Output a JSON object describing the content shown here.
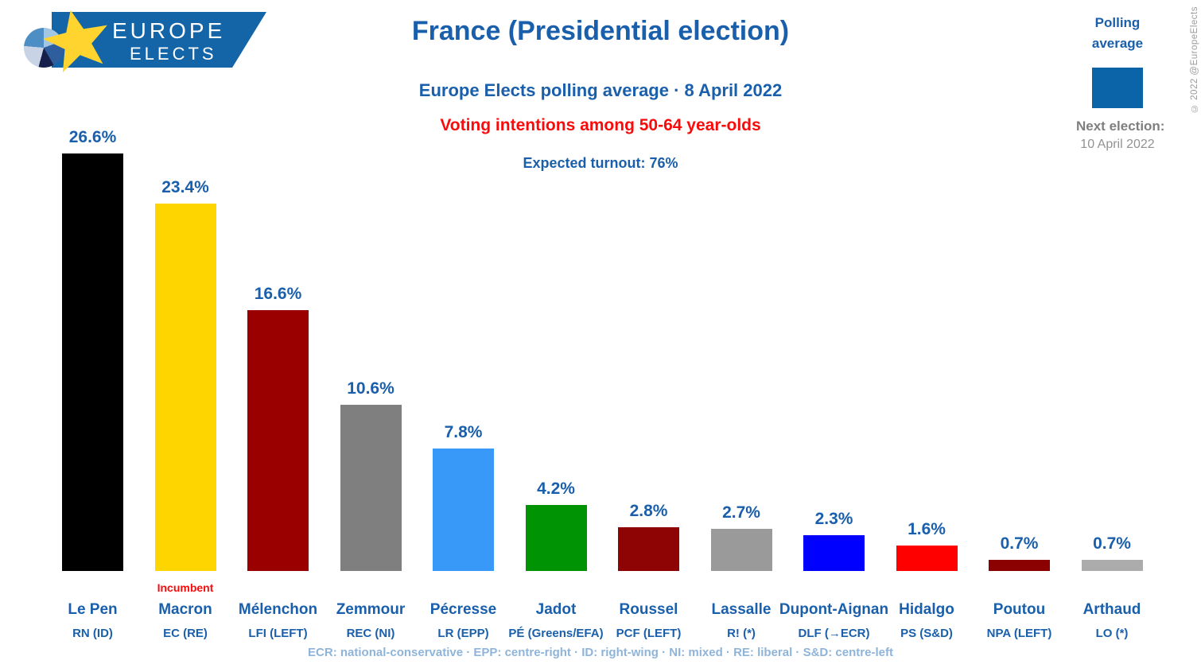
{
  "logo": {
    "line1": "EUROPE",
    "line2": "ELECTS"
  },
  "header": {
    "title": "France (Presidential election)",
    "subtitle": "Europe Elects polling average · 8 April 2022",
    "audience_note": "Voting intentions among 50-64 year-olds",
    "turnout_note": "Expected turnout: 76%"
  },
  "legend": {
    "title_line1": "Polling",
    "title_line2": "average",
    "swatch_color": "#0B63A8",
    "next_election_label": "Next election:",
    "next_election_date": "10 April 2022"
  },
  "watermark": "© 2022 @EuropeElects",
  "footer_note": "ECR: national-conservative · EPP: centre-right · ID: right-wing · NI: mixed · RE: liberal · S&D: centre-left",
  "chart_data": {
    "type": "bar",
    "title": "France (Presidential election)",
    "subtitle": "Europe Elects polling average · 8 April 2022",
    "population": "Voting intentions among 50-64 year-olds",
    "expected_turnout": "76%",
    "value_unit": "%",
    "ylim": [
      0,
      27
    ],
    "grid": false,
    "legend_position": "top-right",
    "categories": [
      "Le Pen",
      "Macron",
      "Mélenchon",
      "Zemmour",
      "Pécresse",
      "Jadot",
      "Roussel",
      "Lassalle",
      "Dupont-Aignan",
      "Hidalgo",
      "Poutou",
      "Arthaud"
    ],
    "series": [
      {
        "name": "Polling average",
        "values": [
          26.6,
          23.4,
          16.6,
          10.6,
          7.8,
          4.2,
          2.8,
          2.7,
          2.3,
          1.6,
          0.7,
          0.7
        ]
      }
    ],
    "bars": [
      {
        "candidate": "Le Pen",
        "party": "RN (ID)",
        "value": 26.6,
        "color": "#000000"
      },
      {
        "candidate": "Macron",
        "party": "EC (RE)",
        "value": 23.4,
        "color": "#FFD500",
        "tag": "Incumbent"
      },
      {
        "candidate": "Mélenchon",
        "party": "LFI (LEFT)",
        "value": 16.6,
        "color": "#9A0000"
      },
      {
        "candidate": "Zemmour",
        "party": "REC (NI)",
        "value": 10.6,
        "color": "#7F7F7F"
      },
      {
        "candidate": "Pécresse",
        "party": "LR (EPP)",
        "value": 7.8,
        "color": "#3899F8"
      },
      {
        "candidate": "Jadot",
        "party": "PÉ (Greens/EFA)",
        "value": 4.2,
        "color": "#009404"
      },
      {
        "candidate": "Roussel",
        "party": "PCF (LEFT)",
        "value": 2.8,
        "color": "#8E0303"
      },
      {
        "candidate": "Lassalle",
        "party": "R! (*)",
        "value": 2.7,
        "color": "#9A9A9A"
      },
      {
        "candidate": "Dupont-Aignan",
        "party": "DLF (→ECR)",
        "value": 2.3,
        "color": "#0000FE"
      },
      {
        "candidate": "Hidalgo",
        "party": "PS (S&D)",
        "value": 1.6,
        "color": "#FE0000"
      },
      {
        "candidate": "Poutou",
        "party": "NPA (LEFT)",
        "value": 0.7,
        "color": "#8B0000"
      },
      {
        "candidate": "Arthaud",
        "party": "LO (*)",
        "value": 0.7,
        "color": "#ACACAC"
      }
    ]
  }
}
